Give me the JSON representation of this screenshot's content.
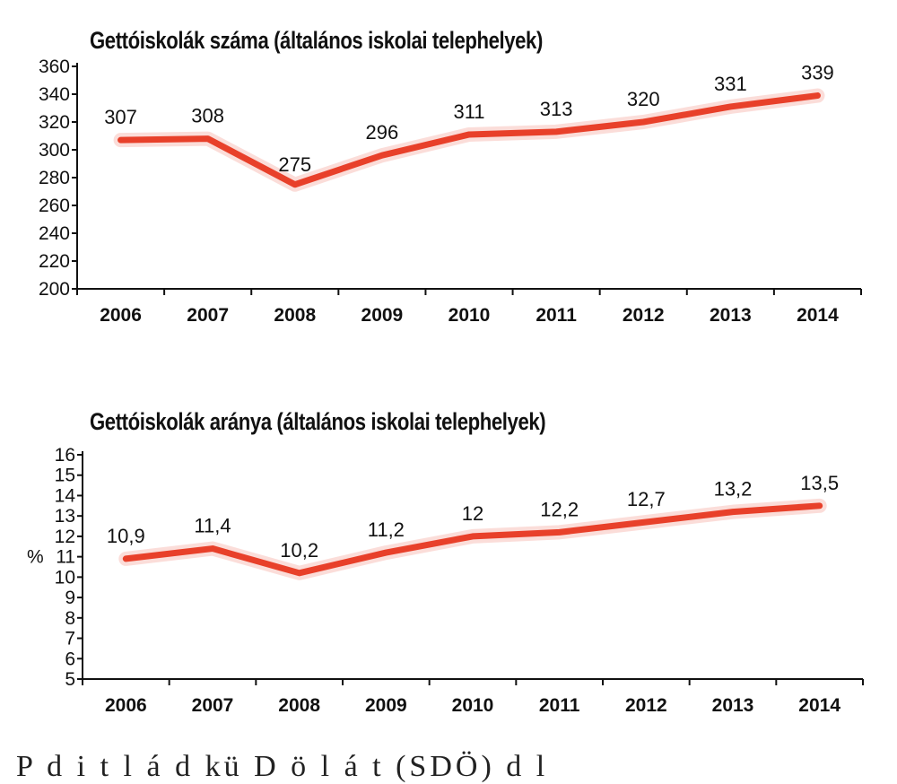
{
  "chart_data": [
    {
      "type": "line",
      "title": "Gettóiskolák száma (általános iskolai telephelyek)",
      "categories": [
        "2006",
        "2007",
        "2008",
        "2009",
        "2010",
        "2011",
        "2012",
        "2013",
        "2014"
      ],
      "values": [
        307,
        308,
        275,
        296,
        311,
        313,
        320,
        331,
        339
      ],
      "data_labels": [
        "307",
        "308",
        "275",
        "296",
        "311",
        "313",
        "320",
        "331",
        "339"
      ],
      "yticks": [
        "200",
        "220",
        "240",
        "260",
        "280",
        "300",
        "320",
        "340",
        "360"
      ],
      "ylim": [
        200,
        360
      ],
      "ylabel": "",
      "line_color": "#e8402a",
      "grid": false
    },
    {
      "type": "line",
      "title": "Gettóiskolák aránya (általános iskolai telephelyek)",
      "categories": [
        "2006",
        "2007",
        "2008",
        "2009",
        "2010",
        "2011",
        "2012",
        "2013",
        "2014"
      ],
      "values": [
        10.9,
        11.4,
        10.2,
        11.2,
        12.0,
        12.2,
        12.7,
        13.2,
        13.5
      ],
      "data_labels": [
        "10,9",
        "11,4",
        "10,2",
        "11,2",
        "12",
        "12,2",
        "12,7",
        "13,2",
        "13,5"
      ],
      "yticks": [
        "5",
        "6",
        "7",
        "8",
        "9",
        "10",
        "11",
        "12",
        "13",
        "14",
        "15",
        "16"
      ],
      "ylim": [
        5,
        16
      ],
      "ylabel": "%",
      "line_color": "#e8402a",
      "grid": false
    }
  ],
  "footer": {
    "text": "P  d  i t      l  á     d kü     D     ö  l     á    t (SDÖ)  d l "
  }
}
